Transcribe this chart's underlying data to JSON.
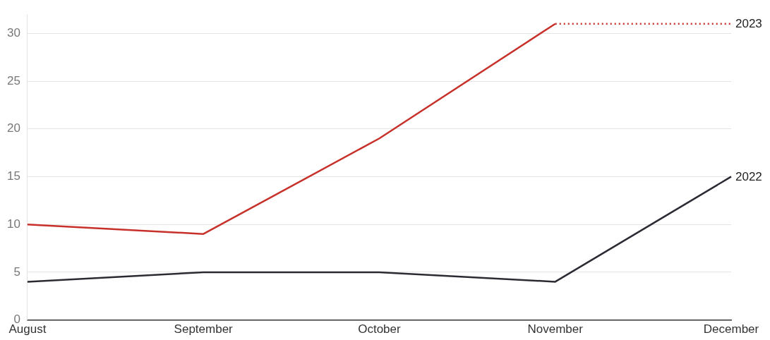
{
  "chart_data": {
    "type": "line",
    "categories": [
      "August",
      "September",
      "October",
      "November",
      "December"
    ],
    "series": [
      {
        "name": "2023",
        "color": "#c8302a",
        "values": [
          10,
          9,
          19,
          31,
          null
        ]
      },
      {
        "color": "#c8302a",
        "values": [
          null,
          null,
          null,
          31,
          31
        ],
        "line_style": "dotted"
      },
      {
        "name": "2022",
        "color": "#2b2b33",
        "values": [
          4,
          5,
          5,
          4,
          15
        ]
      }
    ],
    "ylim": [
      0,
      32
    ],
    "yticks": [
      0,
      5,
      10,
      15,
      20,
      25,
      30
    ],
    "grid": "y",
    "legend": false,
    "marker": "none",
    "line_style": "solid"
  }
}
